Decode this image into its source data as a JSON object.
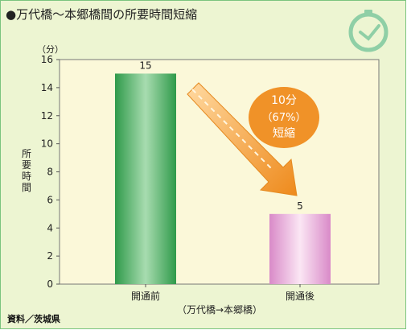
{
  "title": "●万代橋～本郷橋間の所要時間短縮",
  "source": "資料／茨城県",
  "colors": {
    "frame_border": "#7bc47f",
    "background": "#edf5d2",
    "plot_background": "#fbf8d9",
    "bar_before": "#3fae5c",
    "bar_after": "#e6a6d6",
    "arrow": "#f09228",
    "badge": "#f09228",
    "clock": "#8fcfa6"
  },
  "icons": {
    "clock": "clock-icon"
  },
  "annotation": {
    "line1": "10分",
    "line2": "（67%）",
    "line3": "短縮"
  },
  "chart_data": {
    "type": "bar",
    "title": "",
    "categories": [
      "開通前",
      "開通後"
    ],
    "values": [
      15,
      5
    ],
    "data_labels": [
      "15",
      "5"
    ],
    "ylabel": "所要時間",
    "yunit": "（分）",
    "xlabel": "（万代橋→本郷橋）",
    "ylim": [
      0,
      16
    ],
    "yticks": [
      "0",
      "2",
      "4",
      "6",
      "8",
      "10",
      "12",
      "14",
      "16"
    ],
    "grid": false,
    "legend": "none"
  }
}
